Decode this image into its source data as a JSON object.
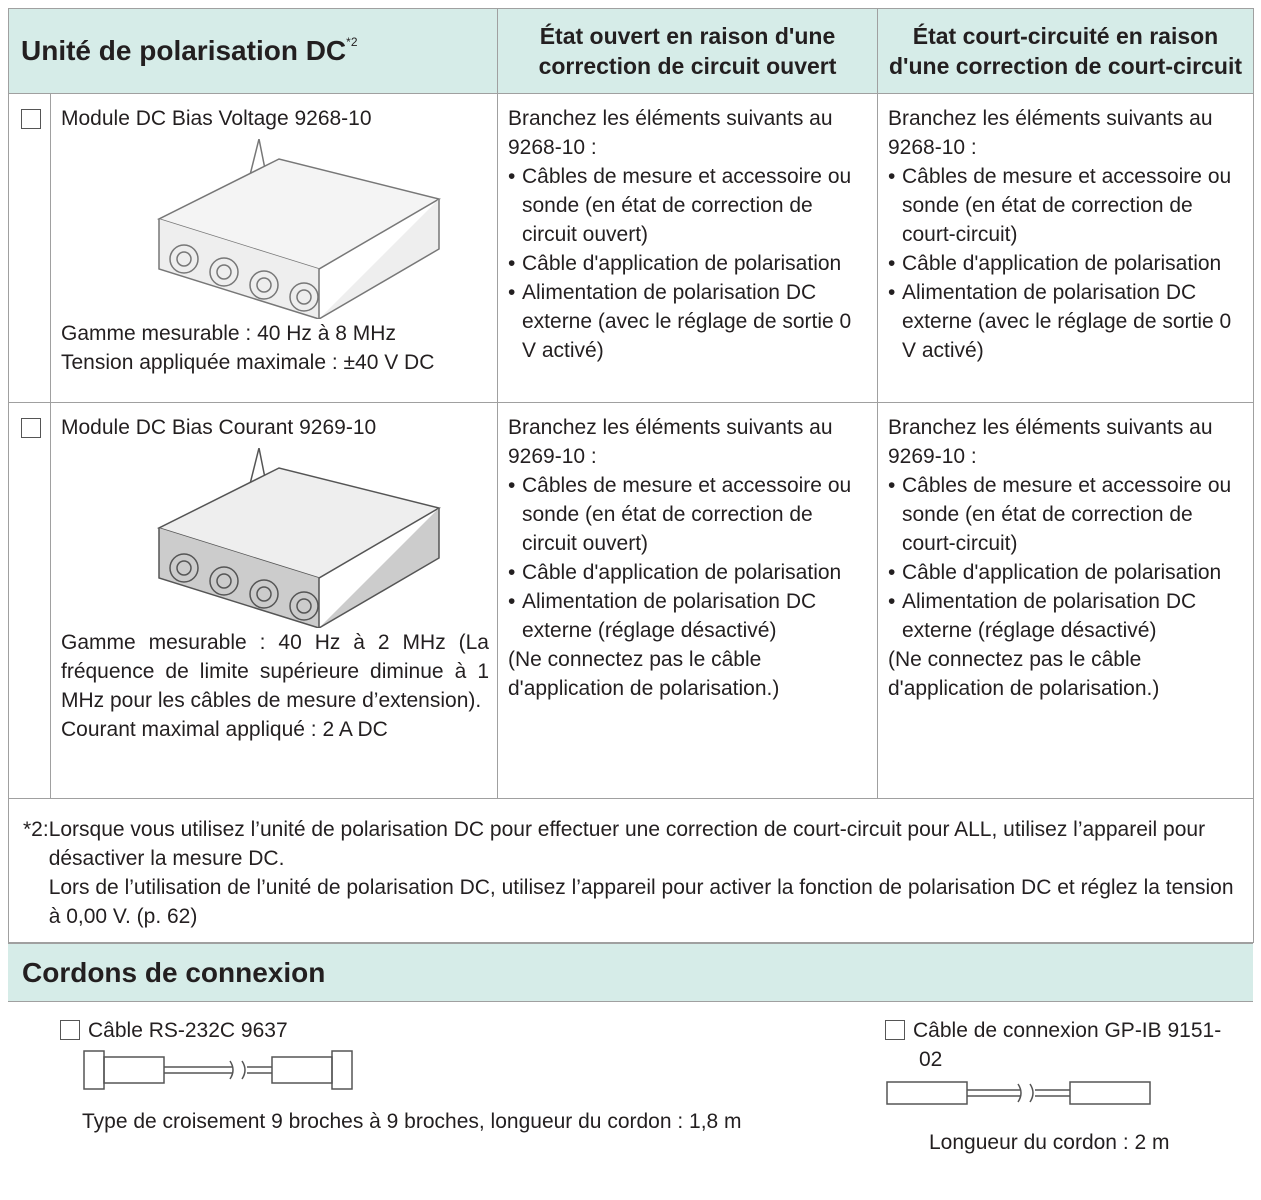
{
  "table": {
    "header": [
      "Unité de polarisation DC",
      "État ouvert en raison d'une correction de circuit ouvert",
      "État court-circuité en raison d'une correction de court-circuit"
    ],
    "header_note": "*2",
    "rows": [
      {
        "name": "Module DC Bias Voltage 9268-10",
        "specs": [
          "Gamme mesurable : 40 Hz à 8 MHz",
          "Tension appliquée maximale : ±40 V DC"
        ],
        "open": {
          "intro": "Branchez les éléments suivants au 9268-10 :",
          "items": [
            "Câbles de mesure et accessoire ou sonde (en état de correction de circuit ouvert)",
            "Câble d'application de polarisation",
            "Alimentation de polarisation DC externe (avec le réglage de sortie 0 V activé)"
          ]
        },
        "short": {
          "intro": "Branchez les éléments suivants au 9268-10 :",
          "items": [
            "Câbles de mesure et accessoire ou sonde (en état de correction de court-circuit)",
            "Câble d'application de polarisation",
            "Alimentation de polarisation DC externe (avec le réglage de sortie 0 V activé)"
          ]
        }
      },
      {
        "name": "Module DC Bias Courant 9269-10",
        "specs": [
          "Gamme mesurable : 40 Hz à 2 MHz (La fréquence de limite supérieure diminue à 1 MHz pour les câbles de mesure d’extension).",
          "Courant maximal appliqué : 2 A DC"
        ],
        "open": {
          "intro": "Branchez les éléments suivants au 9269-10 :",
          "items": [
            "Câbles de mesure et accessoire ou sonde (en état de correction de circuit ouvert)",
            "Câble d'application de polarisation",
            "Alimentation de polarisation DC externe (réglage désactivé)"
          ],
          "note": "(Ne connectez pas le câble d'application de polarisation.)"
        },
        "short": {
          "intro": "Branchez les éléments suivants au 9269-10 :",
          "items": [
            "Câbles de mesure et accessoire ou sonde (en état de correction de court-circuit)",
            "Câble d'application de polarisation",
            "Alimentation de polarisation DC externe (réglage désactivé)"
          ],
          "note": "(Ne connectez pas le câble d'application de polarisation.)"
        }
      }
    ]
  },
  "footnote": {
    "mark": "*2:",
    "paragraphs": [
      "Lorsque vous utilisez l’unité de polarisation DC pour effectuer une correction de court-circuit pour ALL, utilisez l’appareil pour désactiver la mesure DC.",
      "Lors de l’utilisation de l’unité de polarisation DC, utilisez l’appareil pour activer la fonction de polarisation DC et réglez la tension à 0,00 V. (p. 62)"
    ]
  },
  "cords": {
    "title": "Cordons de connexion",
    "items": [
      {
        "label": "Câble RS-232C 9637",
        "desc": "Type de croisement 9 broches à 9 broches, longueur du cordon : 1,8 m"
      },
      {
        "label": "Câble de connexion GP-IB 9151-02",
        "desc": "Longueur du cordon : 2 m"
      }
    ]
  }
}
